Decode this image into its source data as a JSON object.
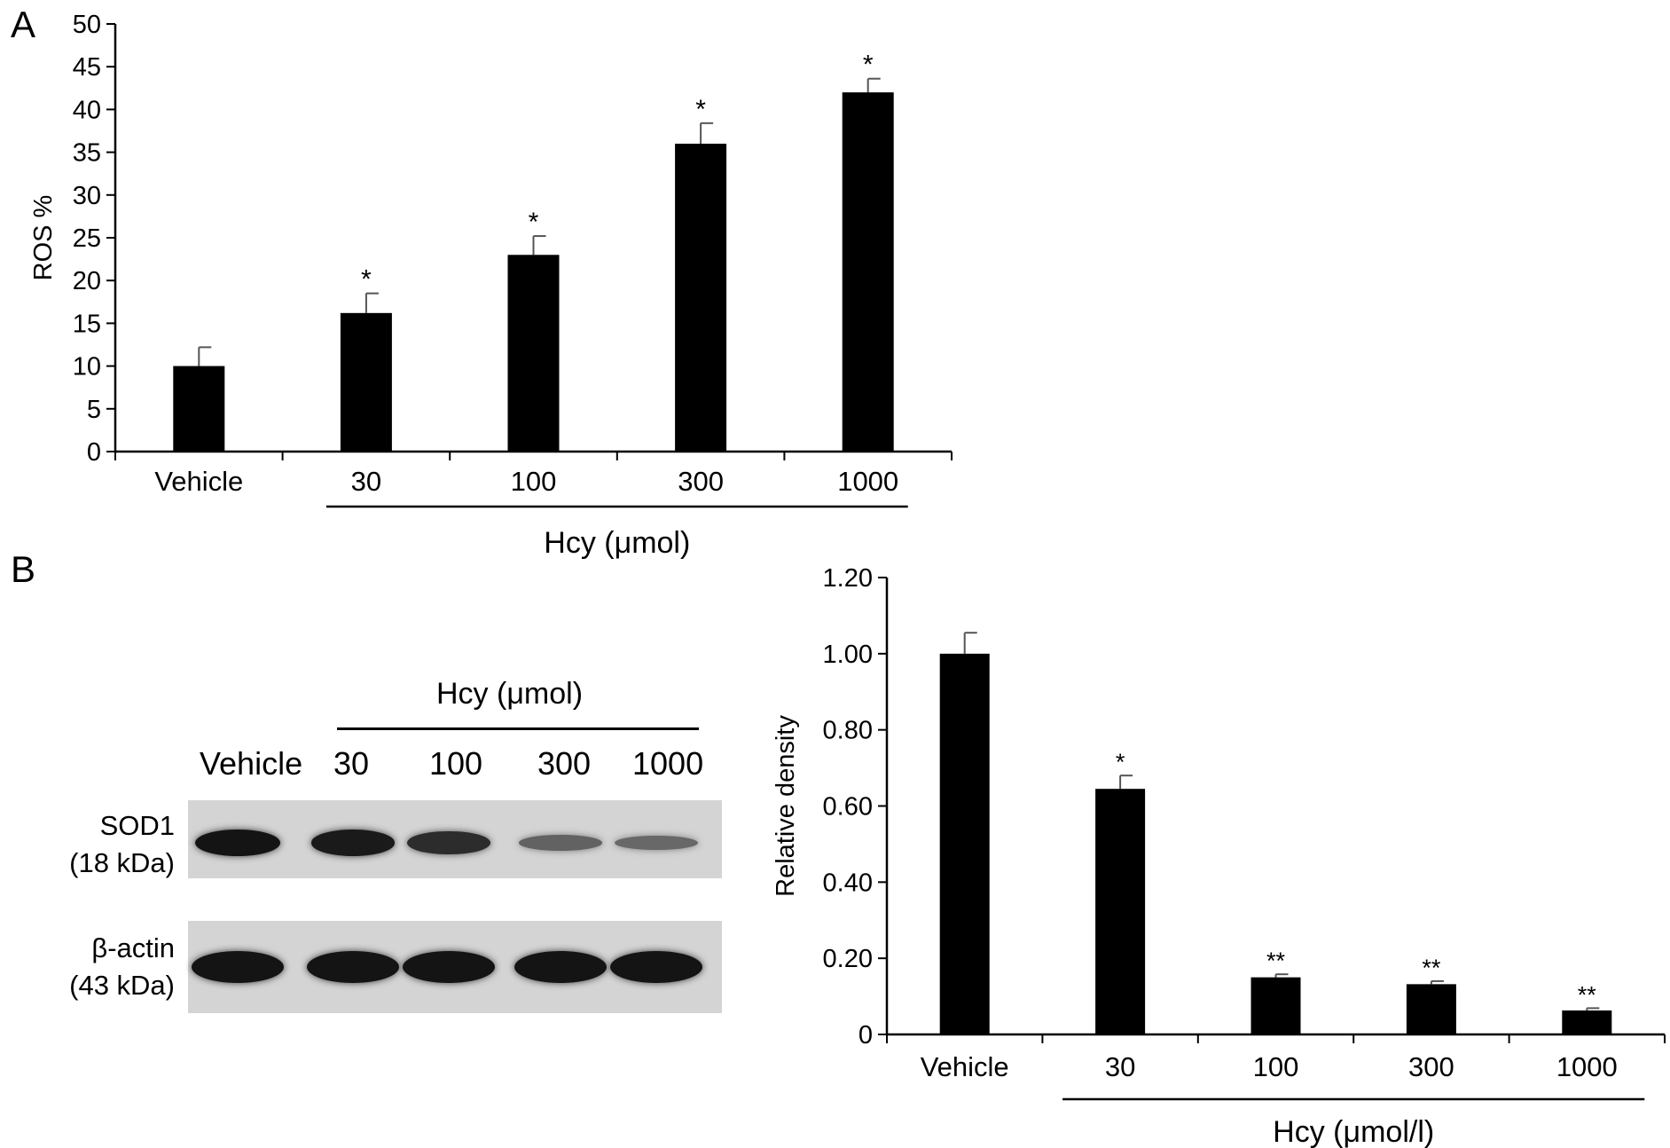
{
  "panels": {
    "a_letter": "A",
    "b_letter": "B"
  },
  "chart_data": [
    {
      "id": "A",
      "type": "bar",
      "ylabel": "ROS %",
      "xlabel": "Hcy (μmol)",
      "categories": [
        "Vehicle",
        "30",
        "100",
        "300",
        "1000"
      ],
      "values": [
        10,
        16.2,
        23,
        36,
        42
      ],
      "errors": [
        2.2,
        2.3,
        2.2,
        2.4,
        1.6
      ],
      "significance": [
        "",
        "*",
        "*",
        "*",
        "*"
      ],
      "ylim": [
        0,
        50
      ],
      "yticks": [
        "0",
        "5",
        "10",
        "15",
        "20",
        "25",
        "30",
        "35",
        "40",
        "45",
        "50"
      ],
      "group_bracket": {
        "label": "Hcy (μmol)",
        "from_category": "30",
        "to_category": "1000"
      },
      "grid": false
    },
    {
      "id": "B-density",
      "type": "bar",
      "ylabel": "Relative density",
      "xlabel": "Hcy (μmol/l)",
      "categories": [
        "Vehicle",
        "30",
        "100",
        "300",
        "1000"
      ],
      "values": [
        1.0,
        0.645,
        0.15,
        0.132,
        0.063
      ],
      "errors": [
        0.055,
        0.035,
        0.008,
        0.008,
        0.006
      ],
      "significance": [
        "",
        "*",
        "**",
        "**",
        "**"
      ],
      "ylim": [
        0,
        1.2
      ],
      "yticks": [
        "0",
        "0.20",
        "0.40",
        "0.60",
        "0.80",
        "1.00",
        "1.20"
      ],
      "group_bracket": {
        "label": "Hcy (μmol/l)",
        "from_category": "30",
        "to_category": "1000"
      },
      "grid": false
    }
  ],
  "western_blot": {
    "group_label": "Hcy (μmol)",
    "lanes": [
      "Vehicle",
      "30",
      "100",
      "300",
      "1000"
    ],
    "rows": [
      {
        "name": "SOD1",
        "size": "(18 kDa)",
        "intensities": [
          1.0,
          0.95,
          0.8,
          0.35,
          0.3
        ]
      },
      {
        "name": "β-actin",
        "size": "(43 kDa)",
        "intensities": [
          1.0,
          1.0,
          1.0,
          1.0,
          1.0
        ]
      }
    ]
  }
}
